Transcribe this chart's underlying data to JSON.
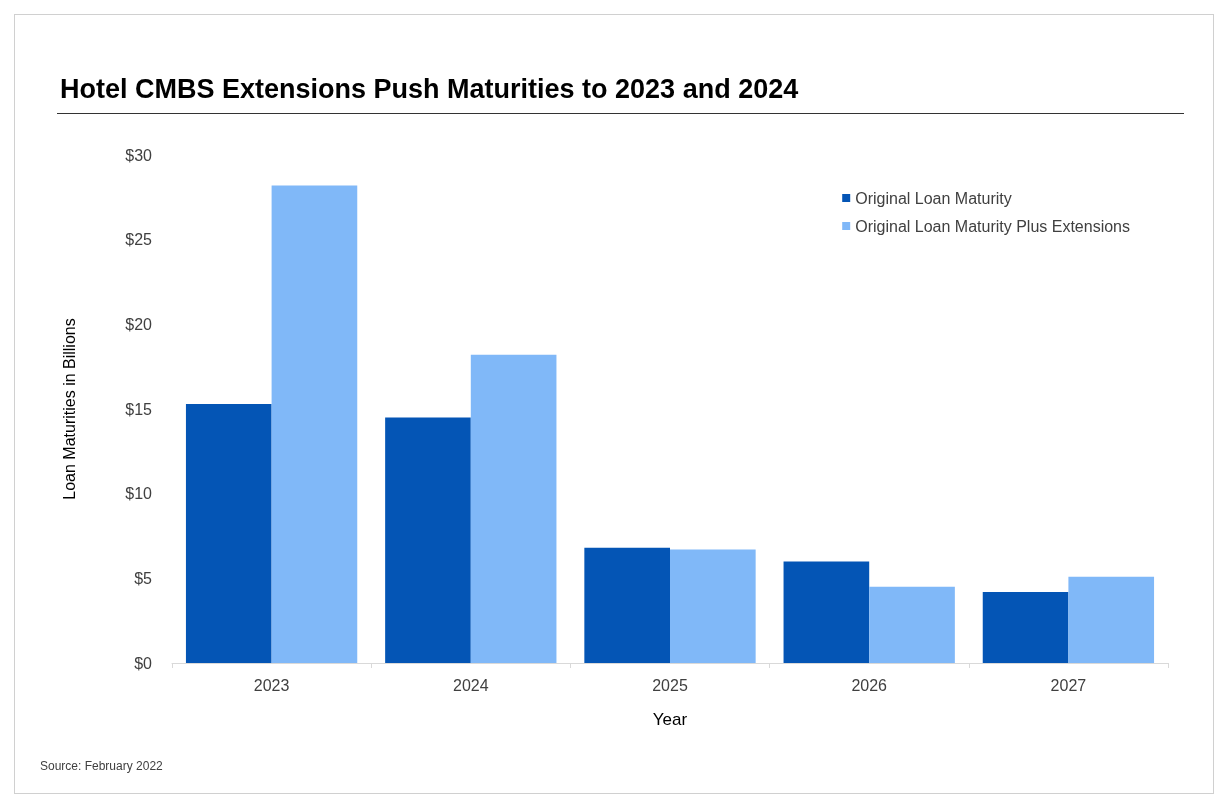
{
  "chart_data": {
    "type": "bar",
    "title": "Hotel CMBS Extensions Push Maturities to 2023 and 2024",
    "xlabel": "Year",
    "ylabel": "Loan Maturities in Billions",
    "categories": [
      "2023",
      "2024",
      "2025",
      "2026",
      "2027"
    ],
    "series": [
      {
        "name": "Original Loan Maturity",
        "color": "#0455b5",
        "values": [
          15.3,
          14.5,
          6.8,
          6.0,
          4.2
        ]
      },
      {
        "name": "Original Loan Maturity Plus Extensions",
        "color": "#80b8f8",
        "values": [
          28.2,
          18.2,
          6.7,
          4.5,
          5.1
        ]
      }
    ],
    "ylim": [
      0,
      30
    ],
    "yticks": [
      {
        "value": 0,
        "label": "$0"
      },
      {
        "value": 5,
        "label": "$5"
      },
      {
        "value": 10,
        "label": "$10"
      },
      {
        "value": 15,
        "label": "$15"
      },
      {
        "value": 20,
        "label": "$20"
      },
      {
        "value": 25,
        "label": "$25"
      },
      {
        "value": 30,
        "label": "$30"
      }
    ],
    "grid": false,
    "legend": "top right",
    "annotations": [
      "Source: February 2022"
    ]
  }
}
